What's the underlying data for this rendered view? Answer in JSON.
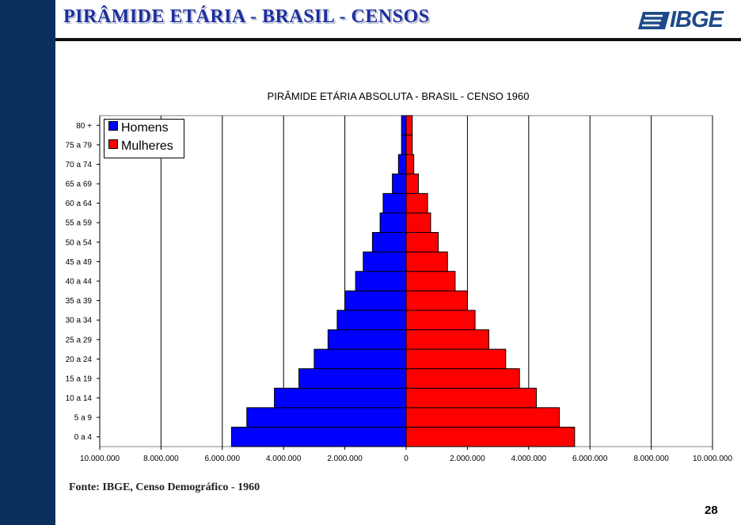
{
  "header": {
    "title": "PIRÂMIDE ETÁRIA - BRASIL - CENSOS",
    "logo_text": "IBGE"
  },
  "footer": {
    "source": "Fonte: IBGE, Censo Demográfico - 1960",
    "page_number": "28"
  },
  "colors": {
    "sidebar": "#0a2f5c",
    "men": "#0000ff",
    "women": "#ff0000"
  },
  "chart_data": {
    "type": "bar",
    "orientation": "horizontal",
    "title": "PIRÂMIDE ETÁRIA ABSOLUTA - BRASIL - CENSO 1960",
    "categories": [
      "0 a 4",
      "5 a 9",
      "10 a 14",
      "15 a 19",
      "20 a 24",
      "25 a 29",
      "30 a 34",
      "35 a 39",
      "40 a 44",
      "45 a 49",
      "50 a 54",
      "55 a 59",
      "60 a 64",
      "65 a 69",
      "70 a 74",
      "75 a 79",
      "80 +"
    ],
    "series": [
      {
        "name": "Homens",
        "values": [
          -5700000,
          -5200000,
          -4300000,
          -3500000,
          -3000000,
          -2550000,
          -2250000,
          -2000000,
          -1650000,
          -1400000,
          -1100000,
          -850000,
          -750000,
          -450000,
          -250000,
          -150000,
          -150000
        ]
      },
      {
        "name": "Mulheres",
        "values": [
          5500000,
          5000000,
          4250000,
          3700000,
          3250000,
          2700000,
          2250000,
          2000000,
          1600000,
          1350000,
          1050000,
          800000,
          700000,
          400000,
          250000,
          200000,
          200000
        ]
      }
    ],
    "xlim": [
      -10000000,
      10000000
    ],
    "x_ticks": [
      -10000000,
      -8000000,
      -6000000,
      -4000000,
      -2000000,
      0,
      2000000,
      4000000,
      6000000,
      8000000,
      10000000
    ],
    "x_tick_labels": [
      "10.000.000",
      "8.000.000",
      "6.000.000",
      "4.000.000",
      "2.000.000",
      "0",
      "2.000.000",
      "4.000.000",
      "6.000.000",
      "8.000.000",
      "10.000.000"
    ],
    "xlabel": "",
    "ylabel": "",
    "grid": "vertical",
    "legend": "top-left"
  }
}
